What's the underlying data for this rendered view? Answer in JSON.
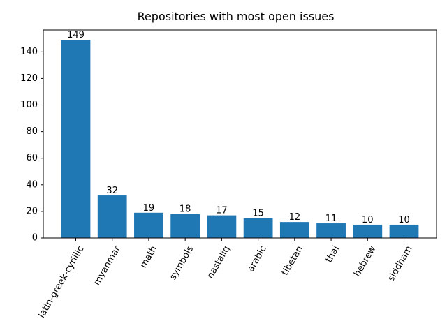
{
  "chart_data": {
    "type": "bar",
    "title": "Repositories with most open issues",
    "xlabel": "",
    "ylabel": "",
    "categories": [
      "latin-greek-cyrillic",
      "myanmar",
      "math",
      "symbols",
      "nastaliq",
      "arabic",
      "tibetan",
      "thai",
      "hebrew",
      "siddham"
    ],
    "values": [
      149,
      32,
      19,
      18,
      17,
      15,
      12,
      11,
      10,
      10
    ],
    "ylim": [
      0,
      156.45
    ],
    "yticks": [
      0,
      20,
      40,
      60,
      80,
      100,
      120,
      140
    ],
    "grid": false,
    "x_tick_rotation_deg": 60,
    "bar_color": "#1f77b4"
  }
}
